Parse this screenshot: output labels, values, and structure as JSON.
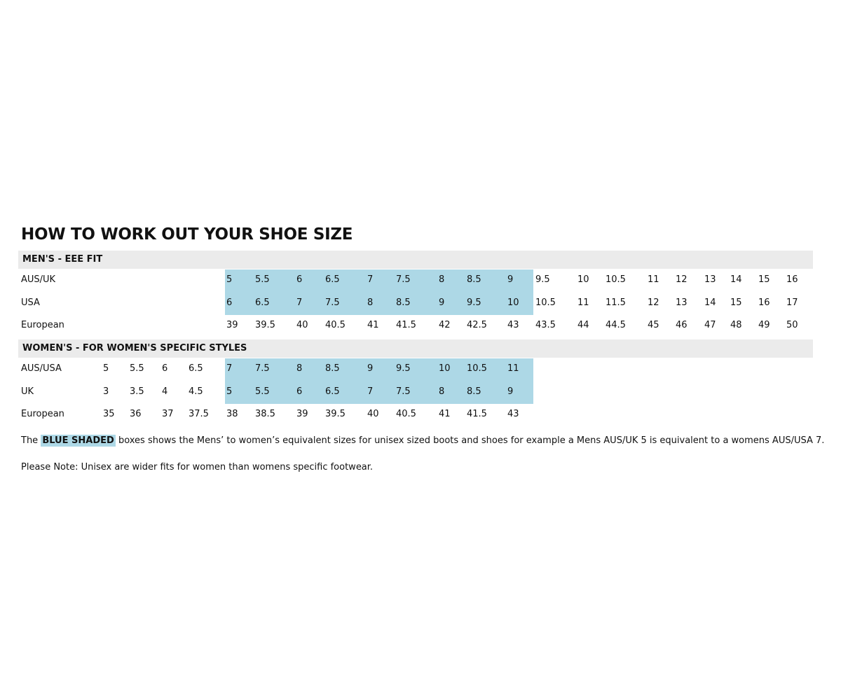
{
  "title": "HOW TO WORK OUT YOUR SHOE SIZE",
  "colors": {
    "blue_shade": "#add8e6",
    "header_band": "#ebebeb"
  },
  "mens": {
    "heading": "MEN'S - EEE FIT",
    "rows": [
      {
        "label": "AUS/UK",
        "values": [
          "5",
          "5.5",
          "6",
          "6.5",
          "7",
          "7.5",
          "8",
          "8.5",
          "9",
          "9.5",
          "10",
          "10.5",
          "11",
          "12",
          "13",
          "14",
          "15",
          "16"
        ]
      },
      {
        "label": "USA",
        "values": [
          "6",
          "6.5",
          "7",
          "7.5",
          "8",
          "8.5",
          "9",
          "9.5",
          "10",
          "10.5",
          "11",
          "11.5",
          "12",
          "13",
          "14",
          "15",
          "16",
          "17"
        ]
      },
      {
        "label": "European",
        "values": [
          "39",
          "39.5",
          "40",
          "40.5",
          "41",
          "41.5",
          "42",
          "42.5",
          "43",
          "43.5",
          "44",
          "44.5",
          "45",
          "46",
          "47",
          "48",
          "49",
          "50"
        ]
      }
    ]
  },
  "womens": {
    "heading": "WOMEN'S - FOR WOMEN'S SPECIFIC STYLES",
    "rows": [
      {
        "label": "AUS/USA",
        "values": [
          "5",
          "5.5",
          "6",
          "6.5",
          "7",
          "7.5",
          "8",
          "8.5",
          "9",
          "9.5",
          "10",
          "10.5",
          "11"
        ]
      },
      {
        "label": "UK",
        "values": [
          "3",
          "3.5",
          "4",
          "4.5",
          "5",
          "5.5",
          "6",
          "6.5",
          "7",
          "7.5",
          "8",
          "8.5",
          "9"
        ]
      },
      {
        "label": "European",
        "values": [
          "35",
          "36",
          "37",
          "37.5",
          "38",
          "38.5",
          "39",
          "39.5",
          "40",
          "40.5",
          "41",
          "41.5",
          "43"
        ]
      }
    ]
  },
  "notes": {
    "line1_pre": "The",
    "line1_highlight": "BLUE SHADED",
    "line1_post": "boxes shows the Mens’ to women’s equivalent sizes for unisex sized boots and shoes for example a Mens AUS/UK 5 is equivalent to a womens AUS/USA 7.",
    "line2": "Please Note: Unisex are wider fits for women than womens specific footwear."
  }
}
